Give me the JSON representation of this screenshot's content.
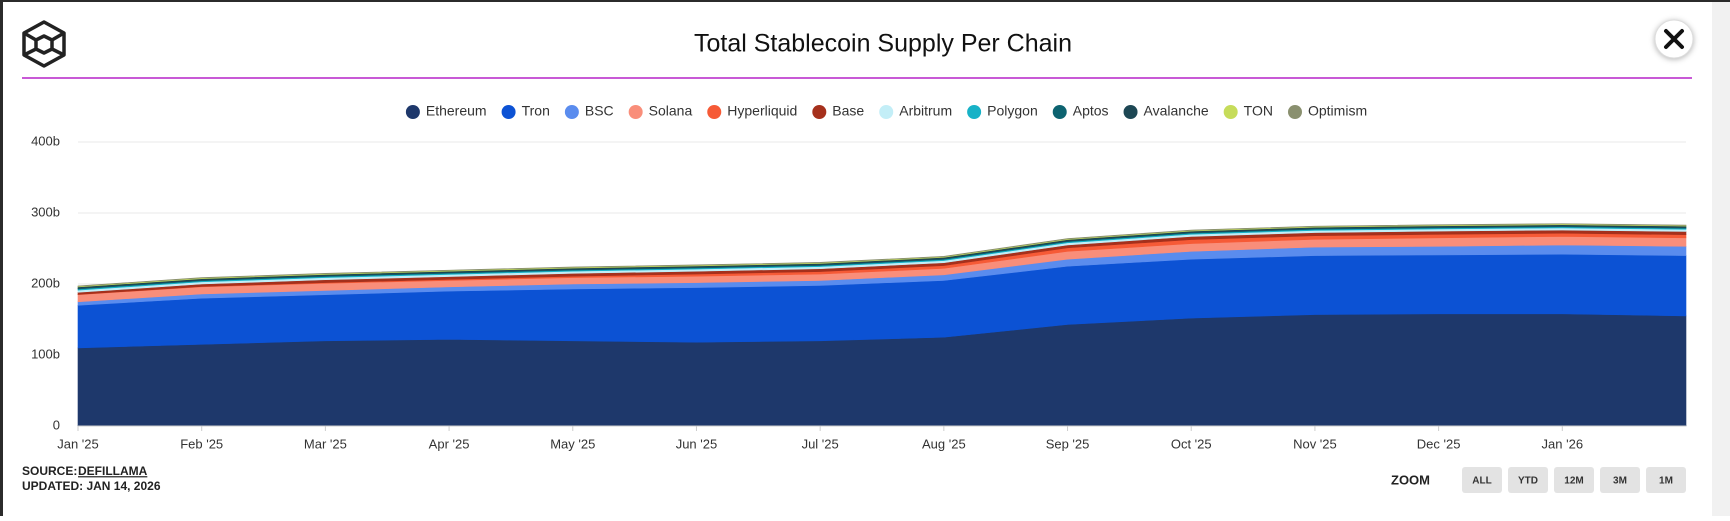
{
  "chart_data": {
    "type": "area",
    "stacked": true,
    "title": "Total Stablecoin Supply Per Chain",
    "categories": [
      "Jan '25",
      "Feb '25",
      "Mar '25",
      "Apr '25",
      "May '25",
      "Jun '25",
      "Jul '25",
      "Aug '25",
      "Sep '25",
      "Oct '25",
      "Nov '25",
      "Dec '25",
      "Jan '26",
      null
    ],
    "ylim": [
      0,
      400
    ],
    "yticks": [
      0,
      {
        "value": 100,
        "label": "100b"
      },
      {
        "value": 200,
        "label": "200b"
      },
      {
        "value": 300,
        "label": "300b"
      },
      {
        "value": 400,
        "label": "400b"
      }
    ],
    "grid": true,
    "legend": "top",
    "series": [
      {
        "name": "Ethereum",
        "color": "#1e386b",
        "values": [
          110,
          115,
          120,
          122,
          120,
          118,
          120,
          125,
          143,
          152,
          157,
          158,
          158,
          155
        ]
      },
      {
        "name": "Tron",
        "color": "#0c52d4",
        "values": [
          60,
          65,
          65,
          68,
          73,
          77,
          78,
          80,
          82,
          83,
          83,
          83,
          84,
          85
        ]
      },
      {
        "name": "BSC",
        "color": "#5a8cee",
        "values": [
          5,
          6,
          6,
          6,
          7,
          7,
          7,
          8,
          10,
          11,
          12,
          12,
          13,
          13
        ]
      },
      {
        "name": "Solana",
        "color": "#f98e7a",
        "values": [
          10,
          10,
          10,
          9,
          9,
          9,
          9,
          9,
          11,
          11,
          11,
          12,
          12,
          12
        ]
      },
      {
        "name": "Hyperliquid",
        "color": "#f65a36",
        "values": [
          0.3,
          0.5,
          1,
          1.5,
          2,
          3,
          3.5,
          4,
          5,
          5.5,
          5,
          5,
          4.5,
          4.5
        ]
      },
      {
        "name": "Base",
        "color": "#a5301c",
        "values": [
          3,
          3.5,
          4,
          4,
          4,
          4,
          4,
          4,
          4,
          4.5,
          4.5,
          4.5,
          4.5,
          4.5
        ]
      },
      {
        "name": "Arbitrum",
        "color": "#c3eef7",
        "values": [
          3,
          3,
          3,
          3,
          3,
          3,
          3,
          3,
          3,
          3,
          3,
          3,
          3,
          3
        ]
      },
      {
        "name": "Polygon",
        "color": "#17b2c7",
        "values": [
          1.5,
          1.5,
          1.5,
          1.5,
          1.5,
          1.5,
          1.5,
          1.5,
          1.5,
          1.5,
          1.5,
          1.5,
          1.5,
          1.5
        ]
      },
      {
        "name": "Aptos",
        "color": "#0d6370",
        "values": [
          1,
          1,
          1,
          1,
          1,
          1,
          1,
          1,
          1,
          1,
          1,
          1,
          1,
          1
        ]
      },
      {
        "name": "Avalanche",
        "color": "#1d4754",
        "values": [
          2,
          2,
          2,
          2,
          2,
          2,
          2,
          2,
          2,
          2,
          2,
          2,
          2,
          2
        ]
      },
      {
        "name": "TON",
        "color": "#c6dc5a",
        "values": [
          1,
          1,
          1,
          1,
          1,
          1,
          1,
          1,
          1,
          1,
          1,
          1,
          1,
          1
        ]
      },
      {
        "name": "Optimism",
        "color": "#8a906f",
        "values": [
          0.5,
          0.5,
          0.5,
          0.5,
          0.5,
          0.5,
          0.5,
          0.5,
          0.5,
          0.5,
          0.5,
          0.5,
          0.5,
          0.5
        ]
      }
    ],
    "source_label": "SOURCE:",
    "source": "DEFILLAMA",
    "updated": "UPDATED: JAN 14, 2026",
    "zoom_label": "ZOOM",
    "zoom_buttons": [
      "ALL",
      "YTD",
      "12M",
      "3M",
      "1M"
    ]
  }
}
